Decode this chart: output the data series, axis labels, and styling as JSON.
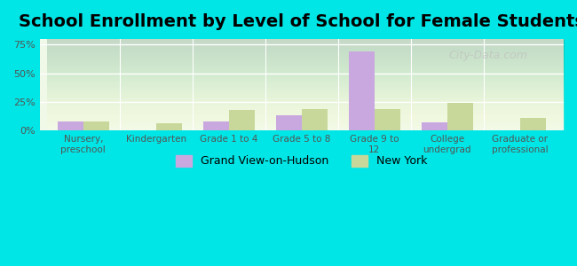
{
  "title": "School Enrollment by Level of School for Female Students",
  "categories": [
    "Nursery,\npreschool",
    "Kindergarten",
    "Grade 1 to 4",
    "Grade 5 to 8",
    "Grade 9 to\n12",
    "College\nundergrad",
    "Graduate or\nprofessional"
  ],
  "grand_view": [
    8,
    0,
    8,
    13,
    69,
    7,
    0
  ],
  "new_york": [
    8,
    6,
    18,
    19,
    19,
    24,
    11
  ],
  "grand_view_color": "#c9a8e0",
  "new_york_color": "#c8d89a",
  "background_color": "#00e5e5",
  "plot_bg_start": "#e8f5e0",
  "plot_bg_end": "#ffffff",
  "title_fontsize": 14,
  "legend_grand_view": "Grand View-on-Hudson",
  "legend_new_york": "New York",
  "ylim": [
    0,
    80
  ],
  "yticks": [
    0,
    25,
    50,
    75
  ],
  "ytick_labels": [
    "0%",
    "25%",
    "50%",
    "75%"
  ],
  "bar_width": 0.35,
  "watermark": "City-Data.com"
}
